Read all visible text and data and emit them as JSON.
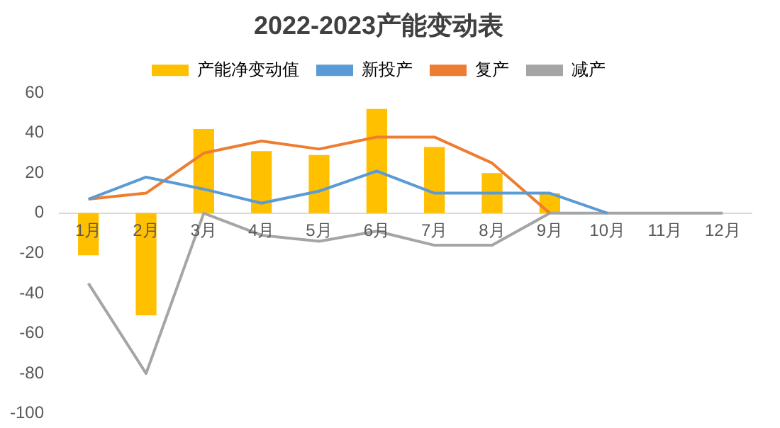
{
  "chart_data": {
    "type": "bar",
    "title": "2022-2023产能变动表",
    "categories": [
      "1月",
      "2月",
      "3月",
      "4月",
      "5月",
      "6月",
      "7月",
      "8月",
      "9月",
      "10月",
      "11月",
      "12月"
    ],
    "series": [
      {
        "name": "产能净变动值",
        "type": "bar",
        "color": "#ffc000",
        "values": [
          -21,
          -51,
          42,
          31,
          29,
          52,
          33,
          20,
          10,
          null,
          null,
          null
        ]
      },
      {
        "name": "新投产",
        "type": "line",
        "color": "#5b9bd5",
        "values": [
          7,
          18,
          12,
          5,
          11,
          21,
          10,
          10,
          10,
          0,
          null,
          null
        ]
      },
      {
        "name": "复产",
        "type": "line",
        "color": "#ed7d31",
        "values": [
          7,
          10,
          30,
          36,
          32,
          38,
          38,
          25,
          0,
          null,
          null,
          null
        ]
      },
      {
        "name": "减产",
        "type": "line",
        "color": "#a5a5a5",
        "values": [
          -35,
          -80,
          0,
          -11,
          -14,
          -9,
          -16,
          -16,
          0,
          0,
          0,
          0
        ]
      }
    ],
    "ylim": [
      -100,
      60
    ],
    "yticks": [
      -100,
      -80,
      -60,
      -40,
      -20,
      0,
      20,
      40,
      60
    ],
    "grid": false,
    "legend": "top",
    "marker": "none"
  }
}
